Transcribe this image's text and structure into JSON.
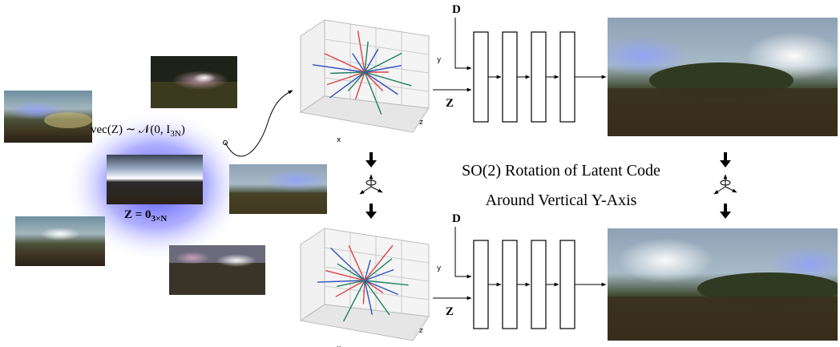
{
  "latent": {
    "sample_label": {
      "main": "vec(Z) ∼ 𝒩(0, I",
      "sub": "3N",
      "end": ")"
    },
    "zero_label": {
      "main": "Z = 0",
      "sub": "3×N"
    }
  },
  "top": {
    "d_label": "D",
    "z_label": "Z",
    "axes": {
      "x": "x",
      "y": "y",
      "z": "z"
    }
  },
  "bottom": {
    "d_label": "D",
    "z_label": "Z",
    "axes": {
      "x": "x",
      "y": "y",
      "z": "z"
    }
  },
  "rotation": {
    "line1": "SO(2) Rotation of Latent Code",
    "line2": "Around Vertical Y-Axis"
  }
}
